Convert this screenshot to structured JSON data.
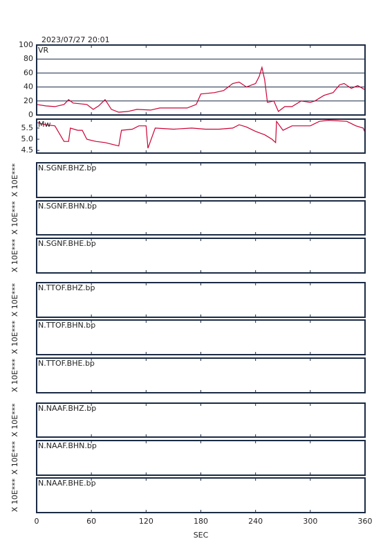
{
  "chart_data": [
    {
      "type": "line",
      "title": "2023/07/27 20:01",
      "label": "VR",
      "color": "#cc0033",
      "xlim": [
        0,
        360
      ],
      "xticks": [
        0,
        60,
        120,
        180,
        240,
        300,
        360
      ],
      "ylim": [
        0,
        100
      ],
      "yticks": [
        0,
        20,
        40,
        60,
        80,
        100
      ],
      "grid": true,
      "x": [
        0,
        10,
        20,
        30,
        35,
        40,
        55,
        62,
        68,
        75,
        82,
        90,
        100,
        110,
        125,
        135,
        150,
        165,
        175,
        180,
        195,
        205,
        215,
        222,
        230,
        240,
        244,
        247,
        250,
        253,
        260,
        265,
        272,
        280,
        290,
        300,
        305,
        315,
        325,
        332,
        337,
        345,
        352,
        360
      ],
      "values": [
        15,
        13,
        12,
        15,
        22,
        17,
        15,
        8,
        13,
        22,
        8,
        4,
        5,
        8,
        7,
        10,
        10,
        10,
        15,
        30,
        32,
        35,
        45,
        47,
        40,
        45,
        55,
        68,
        50,
        18,
        20,
        5,
        12,
        12,
        20,
        18,
        20,
        28,
        32,
        43,
        45,
        38,
        42,
        36
      ]
    },
    {
      "type": "line",
      "label": "Mw",
      "color": "#cc0033",
      "xlim": [
        0,
        360
      ],
      "xticks": [
        0,
        60,
        120,
        180,
        240,
        300,
        360
      ],
      "ylim": [
        4.38,
        5.9
      ],
      "yticks": [
        4.5,
        {
          "value": 5,
          "label": "5.0"
        },
        5.5
      ],
      "grid": false,
      "x": [
        0,
        10,
        20,
        30,
        35,
        37,
        45,
        50,
        55,
        65,
        75,
        85,
        90,
        93,
        105,
        112,
        120,
        122,
        130,
        150,
        170,
        185,
        200,
        215,
        222,
        230,
        240,
        250,
        258,
        262,
        263,
        270,
        280,
        300,
        310,
        320,
        340,
        350,
        358,
        360
      ],
      "values": [
        5.75,
        5.65,
        5.6,
        4.9,
        4.9,
        5.5,
        5.4,
        5.4,
        5.0,
        4.9,
        4.85,
        4.75,
        4.7,
        5.4,
        5.45,
        5.6,
        5.6,
        4.6,
        5.5,
        5.45,
        5.5,
        5.45,
        5.45,
        5.5,
        5.65,
        5.55,
        5.35,
        5.2,
        5.0,
        4.85,
        5.8,
        5.4,
        5.6,
        5.6,
        5.8,
        5.85,
        5.8,
        5.6,
        5.5,
        5.3
      ]
    },
    {
      "type": "trace",
      "label": "N.SGNF.BHZ.bp",
      "ylabel": "X 10E***",
      "xlim": [
        0,
        360
      ],
      "xticks": [
        0,
        60,
        120,
        180,
        240,
        300,
        360
      ]
    },
    {
      "type": "trace",
      "label": "N.SGNF.BHN.bp",
      "ylabel": "X 10E***",
      "xlim": [
        0,
        360
      ],
      "xticks": [
        0,
        60,
        120,
        180,
        240,
        300,
        360
      ]
    },
    {
      "type": "trace",
      "label": "N.SGNF.BHE.bp",
      "ylabel": "X 10E***",
      "xlim": [
        0,
        360
      ],
      "xticks": [
        0,
        60,
        120,
        180,
        240,
        300,
        360
      ]
    },
    {
      "type": "trace",
      "label": "N.TTOF.BHZ.bp",
      "ylabel": "X 10E***",
      "xlim": [
        0,
        360
      ],
      "xticks": [
        0,
        60,
        120,
        180,
        240,
        300,
        360
      ]
    },
    {
      "type": "trace",
      "label": "N.TTOF.BHN.bp",
      "ylabel": "X 10E***",
      "xlim": [
        0,
        360
      ],
      "xticks": [
        0,
        60,
        120,
        180,
        240,
        300,
        360
      ]
    },
    {
      "type": "trace",
      "label": "N.TTOF.BHE.bp",
      "ylabel": "X 10E***",
      "xlim": [
        0,
        360
      ],
      "xticks": [
        0,
        60,
        120,
        180,
        240,
        300,
        360
      ]
    },
    {
      "type": "trace",
      "label": "N.NAAF.BHZ.bp",
      "ylabel": "X 10E***",
      "xlim": [
        0,
        360
      ],
      "xticks": [
        0,
        60,
        120,
        180,
        240,
        300,
        360
      ]
    },
    {
      "type": "trace",
      "label": "N.NAAF.BHN.bp",
      "ylabel": "X 10E***",
      "xlim": [
        0,
        360
      ],
      "xticks": [
        0,
        60,
        120,
        180,
        240,
        300,
        360
      ]
    },
    {
      "type": "trace",
      "label": "N.NAAF.BHE.bp",
      "ylabel": "X 10E***",
      "xlim": [
        0,
        360
      ],
      "xticks": [
        0,
        60,
        120,
        180,
        240,
        300,
        360
      ],
      "xlabel": "SEC"
    }
  ]
}
